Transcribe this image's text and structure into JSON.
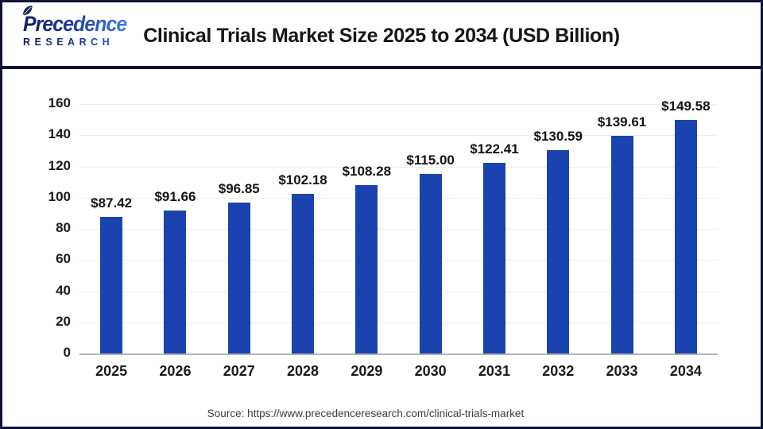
{
  "header": {
    "logo": {
      "brand_top": "Precedence",
      "brand_bottom": "RESEARCH",
      "leaf_icon_color": "#13265f"
    },
    "title": "Clinical Trials Market Size 2025 to 2034 (USD Billion)"
  },
  "chart_data": {
    "type": "bar",
    "title": "Clinical Trials Market Size 2025 to 2034 (USD Billion)",
    "categories": [
      "2025",
      "2026",
      "2027",
      "2028",
      "2029",
      "2030",
      "2031",
      "2032",
      "2033",
      "2034"
    ],
    "values": [
      87.42,
      91.66,
      96.85,
      102.18,
      108.28,
      115.0,
      122.41,
      130.59,
      139.61,
      149.58
    ],
    "value_labels": [
      "$87.42",
      "$91.66",
      "$96.85",
      "$102.18",
      "$108.28",
      "$115.00",
      "$122.41",
      "$130.59",
      "$139.61",
      "$149.58"
    ],
    "unit": "USD Billion",
    "ylim": [
      0,
      160
    ],
    "yticks": [
      0,
      20,
      40,
      60,
      80,
      100,
      120,
      140,
      160
    ],
    "grid": "horizontal",
    "legend": "none",
    "bar_color": "#1b43af",
    "grid_color": "#ededed",
    "axis_color": "#b3b3b3"
  },
  "footer": {
    "source": "Source: https://www.precedenceresearch.com/clinical-trials-market"
  },
  "colors": {
    "frame_border": "#0e1438",
    "header_divider": "#0d1239",
    "brand_navy": "#10205e",
    "brand_blue": "#3e7ee2",
    "text": "#161616",
    "background": "#ffffff"
  }
}
